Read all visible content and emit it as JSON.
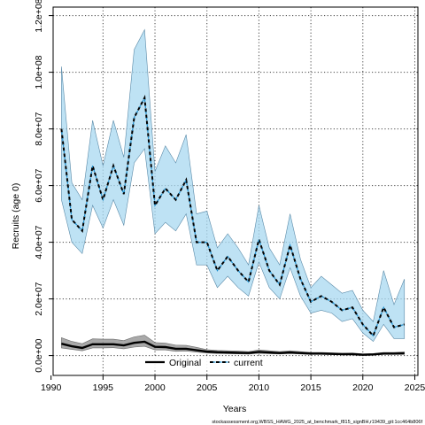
{
  "chart_data": {
    "type": "line",
    "xlabel": "Years",
    "ylabel": "Recruits (age 0)",
    "xlim": [
      1990.2,
      2025.3
    ],
    "ylim": [
      -7000000,
      123000000
    ],
    "x_ticks": [
      1990,
      1995,
      2000,
      2005,
      2010,
      2015,
      2020,
      2025
    ],
    "y_ticks": [
      0,
      20000000,
      40000000,
      60000000,
      80000000,
      100000000,
      120000000
    ],
    "y_tick_labels": [
      "0.0e+00",
      "2.0e+07",
      "4.0e+07",
      "6.0e+07",
      "8.0e+07",
      "1.0e+08",
      "1.2e+08"
    ],
    "grid": true,
    "legend_position": "bottom-center",
    "footer": "stockassessment.org,WBSS_HAWG_2025_at_benchmark_f815_signBH,r19439_git:1cc464b806f",
    "x": [
      1991,
      1992,
      1993,
      1994,
      1995,
      1996,
      1997,
      1998,
      1999,
      2000,
      2001,
      2002,
      2003,
      2004,
      2005,
      2006,
      2007,
      2008,
      2009,
      2010,
      2011,
      2012,
      2013,
      2014,
      2015,
      2016,
      2017,
      2018,
      2019,
      2020,
      2021,
      2022,
      2023,
      2024
    ],
    "series": [
      {
        "name": "Original",
        "color": "#000000",
        "band_color": "#9a9a9a",
        "style": "solid",
        "values": [
          4200000,
          3300000,
          2700000,
          4000000,
          4000000,
          4000000,
          3600000,
          4500000,
          4900000,
          3100000,
          3000000,
          2400000,
          2400000,
          1900000,
          1400000,
          1200000,
          1100000,
          1000000,
          900000,
          1300000,
          1100000,
          900000,
          1100000,
          900000,
          700000,
          700000,
          600000,
          500000,
          500000,
          300000,
          400000,
          700000,
          700000,
          800000
        ],
        "lower": [
          2700000,
          2200000,
          1700000,
          2700000,
          2700000,
          2800000,
          2400000,
          3000000,
          3300000,
          2000000,
          2000000,
          1500000,
          1600000,
          1200000,
          900000,
          700000,
          650000,
          600000,
          500000,
          800000,
          650000,
          550000,
          700000,
          550000,
          400000,
          400000,
          350000,
          300000,
          300000,
          150000,
          200000,
          400000,
          400000,
          450000
        ],
        "upper": [
          6300000,
          5000000,
          4200000,
          5900000,
          5800000,
          5800000,
          5300000,
          6600000,
          7200000,
          4600000,
          4400000,
          3700000,
          3600000,
          2900000,
          2100000,
          1800000,
          1700000,
          1600000,
          1400000,
          2000000,
          1700000,
          1400000,
          1700000,
          1400000,
          1100000,
          1100000,
          1000000,
          800000,
          900000,
          600000,
          700000,
          1100000,
          1100000,
          1300000
        ]
      },
      {
        "name": "current",
        "color": "#1e8fce",
        "band_color": "#a8d8f0",
        "style": "dashed",
        "values": [
          80000000,
          48000000,
          44000000,
          67000000,
          55000000,
          67000000,
          57000000,
          84000000,
          91000000,
          53000000,
          59000000,
          55000000,
          62000000,
          40000000,
          40000000,
          30000000,
          35000000,
          30000000,
          26000000,
          41000000,
          30000000,
          25000000,
          39000000,
          27000000,
          19000000,
          21000000,
          19000000,
          16000000,
          17000000,
          11000000,
          7000000,
          17000000,
          10000000,
          11000000
        ],
        "lower": [
          55000000,
          40000000,
          36000000,
          53000000,
          45000000,
          55000000,
          46000000,
          68000000,
          73000000,
          43000000,
          47000000,
          44000000,
          50000000,
          32000000,
          32000000,
          24000000,
          28000000,
          24000000,
          21000000,
          33000000,
          24000000,
          20000000,
          31000000,
          21000000,
          15000000,
          16000000,
          15000000,
          12000000,
          13000000,
          8000000,
          5000000,
          11000000,
          6000000,
          6000000
        ],
        "upper": [
          102000000,
          61000000,
          55000000,
          83000000,
          67000000,
          83000000,
          70000000,
          108000000,
          115000000,
          65000000,
          74000000,
          68000000,
          78000000,
          50000000,
          51000000,
          38000000,
          43000000,
          38000000,
          32000000,
          53000000,
          38000000,
          32000000,
          50000000,
          34000000,
          24000000,
          28000000,
          25000000,
          22000000,
          23000000,
          16000000,
          12000000,
          30000000,
          18000000,
          27000000
        ]
      }
    ]
  }
}
